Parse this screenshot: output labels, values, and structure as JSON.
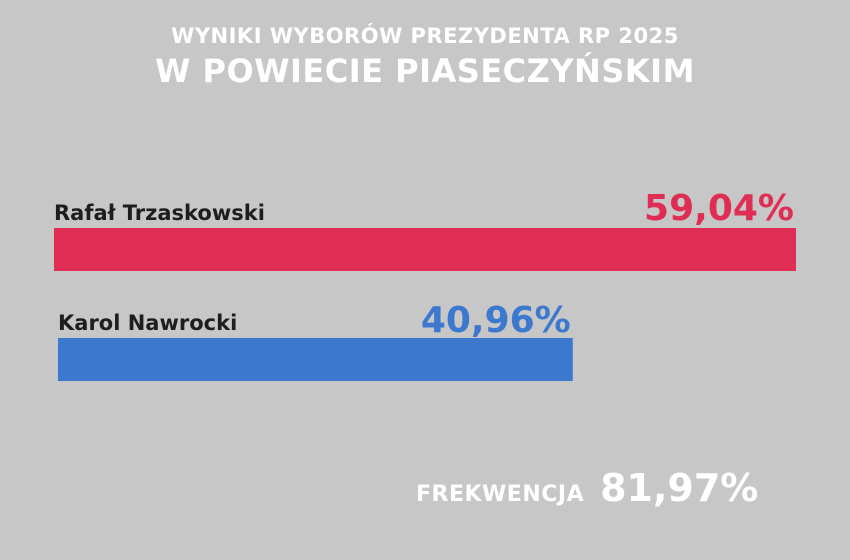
{
  "header": {
    "line1": "WYNIKI WYBORÓW PREZYDENTA RP 2025",
    "line2": "W POWIECIE PIASECZYŃSKIM"
  },
  "chart_data": {
    "type": "bar",
    "orientation": "horizontal",
    "categories": [
      "Rafał Trzaskowski",
      "Karol Nawrocki"
    ],
    "values": [
      59.04,
      40.96
    ],
    "value_labels": [
      "59,04%",
      "40,96%"
    ],
    "colors": [
      "#e02d53",
      "#3d78cf"
    ],
    "xlim": [
      0,
      59.04
    ],
    "grid": false,
    "legend": "none"
  },
  "turnout": {
    "label": "FREKWENCJA",
    "value": "81,97%",
    "percent": 81.97
  },
  "colors": {
    "background": "#c6c7c6",
    "text": "#ffffff",
    "label_text": "#1e1e1e"
  }
}
